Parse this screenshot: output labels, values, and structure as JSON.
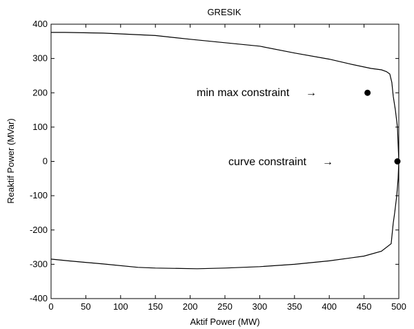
{
  "chart_data": {
    "type": "line",
    "title": "GRESIK",
    "xlabel": "Aktif Power (MW)",
    "ylabel": "Reaktif Power (MVar)",
    "xlim": [
      0,
      500
    ],
    "ylim": [
      -400,
      400
    ],
    "xticks": [
      0,
      50,
      100,
      150,
      200,
      250,
      300,
      350,
      400,
      450,
      500
    ],
    "yticks": [
      -400,
      -300,
      -200,
      -100,
      0,
      100,
      200,
      300,
      400
    ],
    "grid": false,
    "series": [
      {
        "values": [
          [
            0,
            376
          ],
          [
            20,
            376
          ],
          [
            75,
            374
          ],
          [
            150,
            367
          ],
          [
            200,
            356
          ],
          [
            250,
            346
          ],
          [
            300,
            336
          ],
          [
            350,
            316
          ],
          [
            400,
            298
          ],
          [
            430,
            284
          ],
          [
            460,
            271
          ],
          [
            475,
            267
          ],
          [
            482,
            262
          ],
          [
            487,
            255
          ],
          [
            490,
            230
          ],
          [
            492,
            190
          ],
          [
            495,
            150
          ],
          [
            498,
            100
          ],
          [
            499,
            50
          ],
          [
            500,
            0
          ],
          [
            499,
            -50
          ],
          [
            497,
            -100
          ],
          [
            494,
            -150
          ],
          [
            492,
            -180
          ],
          [
            489,
            -240
          ],
          [
            475,
            -262
          ],
          [
            450,
            -276
          ],
          [
            400,
            -290
          ],
          [
            350,
            -300
          ],
          [
            300,
            -307
          ],
          [
            250,
            -311
          ],
          [
            210,
            -313
          ],
          [
            150,
            -311
          ],
          [
            125,
            -309
          ],
          [
            75,
            -299
          ],
          [
            25,
            -290
          ],
          [
            0,
            -285
          ]
        ]
      }
    ],
    "points": [
      {
        "label": "min max constraint",
        "x": 455,
        "y": 200
      },
      {
        "label": "curve constraint",
        "x": 498,
        "y": 0
      }
    ],
    "annotations": [
      {
        "text": "min max constraint",
        "arrow": "→"
      },
      {
        "text": "curve constraint",
        "arrow": "→"
      }
    ]
  }
}
